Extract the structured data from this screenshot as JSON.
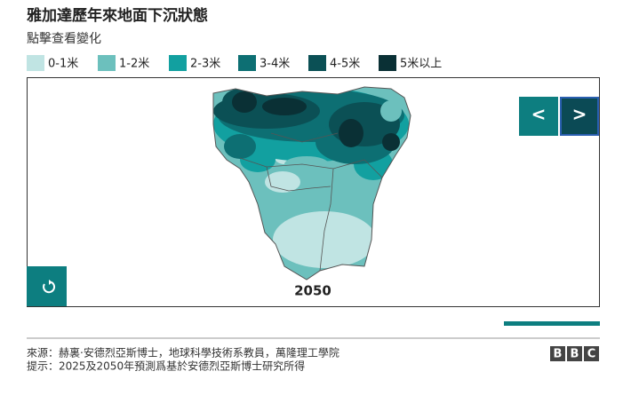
{
  "header": {
    "title": "雅加達歷年來地面下沉狀態",
    "subtitle": "點擊查看變化"
  },
  "legend": [
    {
      "label": "0-1米",
      "color": "#c0e4e3"
    },
    {
      "label": "1-2米",
      "color": "#6cc0bd"
    },
    {
      "label": "2-3米",
      "color": "#12a0a0"
    },
    {
      "label": "3-4米",
      "color": "#0d6f73"
    },
    {
      "label": "4-5米",
      "color": "#0b5055"
    },
    {
      "label": "5米以上",
      "color": "#0a3035"
    }
  ],
  "map": {
    "year": "2050",
    "buttons": {
      "previous": "<",
      "next": ">"
    }
  },
  "footer": {
    "source": "來源：赫裏·安德烈亞斯博士，地球科學技術系教員，萬隆理工學院",
    "note": "提示：2025及2050年預測爲基於安德烈亞斯博士研究所得",
    "logo": [
      "B",
      "B",
      "C"
    ]
  }
}
